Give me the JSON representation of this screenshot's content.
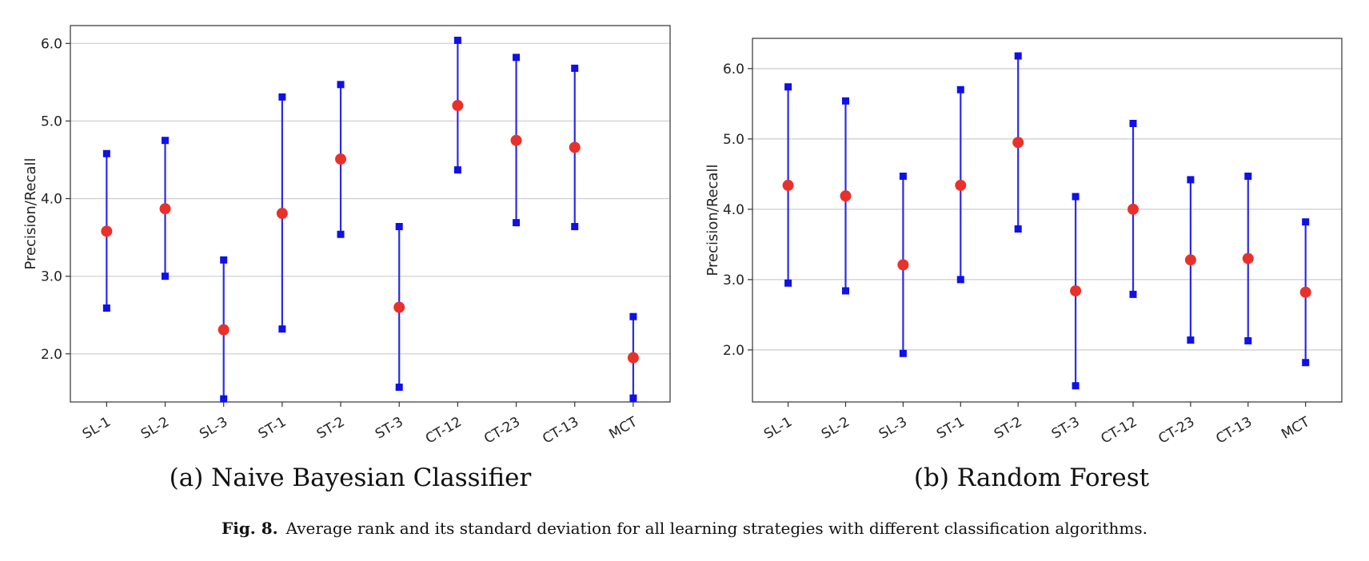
{
  "caption": {
    "label": "Fig. 8.",
    "text": "Average rank and its standard deviation for all learning strategies with different classification algorithms."
  },
  "chart_data": [
    {
      "type": "errorbar",
      "subtitle": "(a) Naive Bayesian Classifier",
      "ylabel": "Precision/Recall",
      "xlabel": "",
      "categories": [
        "SL-1",
        "SL-2",
        "SL-3",
        "ST-1",
        "ST-2",
        "ST-3",
        "CT-12",
        "CT-23",
        "CT-13",
        "MCT"
      ],
      "mean": [
        3.58,
        3.87,
        2.31,
        3.81,
        4.51,
        2.6,
        5.2,
        4.75,
        4.66,
        1.95
      ],
      "lower": [
        2.59,
        3.0,
        1.42,
        2.32,
        3.54,
        1.57,
        4.37,
        3.69,
        3.64,
        1.43
      ],
      "upper": [
        4.58,
        4.75,
        3.21,
        5.31,
        5.47,
        3.64,
        6.04,
        5.82,
        5.68,
        2.48
      ],
      "yticks": [
        "2.0",
        "3.0",
        "4.0",
        "5.0",
        "6.0"
      ],
      "ylim": [
        1.38,
        6.23
      ],
      "grid": "horizontal",
      "colors": {
        "mean": "#e8312a",
        "bounds": "#1010e8",
        "line": "#2a2ae8"
      }
    },
    {
      "type": "errorbar",
      "subtitle": "(b) Random Forest",
      "ylabel": "Precision/Recall",
      "xlabel": "",
      "categories": [
        "SL-1",
        "SL-2",
        "SL-3",
        "ST-1",
        "ST-2",
        "ST-3",
        "CT-12",
        "CT-23",
        "CT-13",
        "MCT"
      ],
      "mean": [
        4.34,
        4.19,
        3.21,
        4.34,
        4.95,
        2.84,
        4.0,
        3.28,
        3.3,
        2.82
      ],
      "lower": [
        2.95,
        2.84,
        1.95,
        3.0,
        3.72,
        1.49,
        2.79,
        2.14,
        2.13,
        1.82
      ],
      "upper": [
        5.74,
        5.54,
        4.47,
        5.7,
        6.18,
        4.18,
        5.22,
        4.42,
        4.47,
        3.82
      ],
      "yticks": [
        "2.0",
        "3.0",
        "4.0",
        "5.0",
        "6.0"
      ],
      "ylim": [
        1.26,
        6.43
      ],
      "grid": "horizontal",
      "colors": {
        "mean": "#e8312a",
        "bounds": "#1010e8",
        "line": "#2a2ae8"
      }
    }
  ]
}
